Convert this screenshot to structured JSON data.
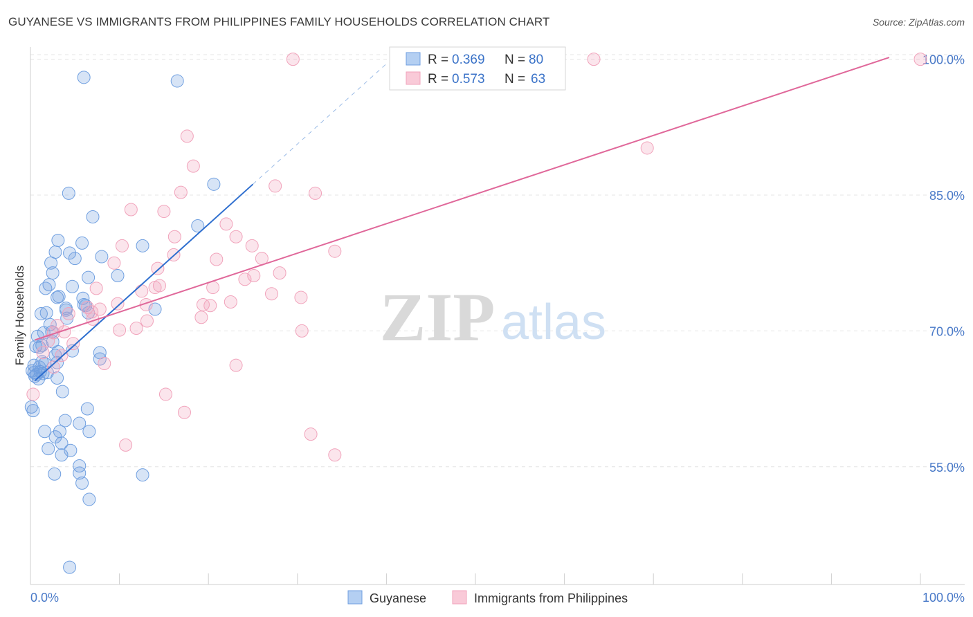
{
  "title": "GUYANESE VS IMMIGRANTS FROM PHILIPPINES FAMILY HOUSEHOLDS CORRELATION CHART",
  "source": "Source: ZipAtlas.com",
  "watermark": {
    "zip": "ZIP",
    "atlas": "atlas"
  },
  "chart_data": {
    "type": "scatter",
    "title": "GUYANESE VS IMMIGRANTS FROM PHILIPPINES FAMILY HOUSEHOLDS CORRELATION CHART",
    "xlabel": "",
    "ylabel": "Family Households",
    "xlim": [
      0,
      100
    ],
    "ylim": [
      42,
      101.5
    ],
    "x_tick_labels": [
      "0.0%",
      "100.0%"
    ],
    "y_ticks": [
      {
        "value": 55,
        "label": "55.0%"
      },
      {
        "value": 70,
        "label": "70.0%"
      },
      {
        "value": 85,
        "label": "85.0%"
      },
      {
        "value": 100,
        "label": "100.0%"
      }
    ],
    "grid": true,
    "legend_position": "bottom",
    "series": [
      {
        "name": "Guyanese",
        "color": "#6f9fe0",
        "line_color": "#2f6fcf",
        "r": "0.369",
        "n": "80",
        "trend": {
          "x0": 0.5,
          "y0": 64.5,
          "x1": 25,
          "y1": 86.2,
          "dash_x1": 40,
          "dash_y1": 99.5
        },
        "points": [
          [
            6.0,
            98.0
          ],
          [
            16.5,
            97.6
          ],
          [
            4.3,
            85.2
          ],
          [
            20.6,
            86.2
          ],
          [
            7.0,
            82.6
          ],
          [
            18.8,
            81.6
          ],
          [
            3.1,
            80.0
          ],
          [
            5.8,
            79.7
          ],
          [
            12.6,
            79.4
          ],
          [
            4.4,
            78.6
          ],
          [
            2.8,
            78.7
          ],
          [
            8.0,
            78.2
          ],
          [
            5.0,
            78.0
          ],
          [
            2.3,
            77.5
          ],
          [
            2.5,
            76.4
          ],
          [
            6.5,
            75.9
          ],
          [
            9.8,
            76.1
          ],
          [
            2.1,
            75.1
          ],
          [
            1.7,
            74.7
          ],
          [
            4.7,
            74.9
          ],
          [
            3.2,
            73.8
          ],
          [
            5.9,
            73.6
          ],
          [
            6.0,
            72.9
          ],
          [
            3.0,
            73.7
          ],
          [
            6.2,
            72.8
          ],
          [
            4.0,
            72.3
          ],
          [
            14.0,
            72.4
          ],
          [
            1.2,
            71.9
          ],
          [
            1.8,
            72.0
          ],
          [
            4.1,
            71.4
          ],
          [
            6.5,
            72.0
          ],
          [
            2.2,
            70.7
          ],
          [
            0.8,
            69.4
          ],
          [
            1.5,
            69.8
          ],
          [
            0.6,
            68.3
          ],
          [
            1.3,
            68.4
          ],
          [
            2.5,
            68.8
          ],
          [
            4.7,
            67.8
          ],
          [
            3.1,
            67.7
          ],
          [
            2.8,
            67.3
          ],
          [
            1.3,
            66.6
          ],
          [
            7.8,
            66.9
          ],
          [
            7.8,
            67.6
          ],
          [
            0.4,
            66.2
          ],
          [
            1.0,
            66.0
          ],
          [
            3.0,
            66.5
          ],
          [
            0.4,
            65.4
          ],
          [
            0.7,
            65.2
          ],
          [
            1.1,
            65.5
          ],
          [
            1.4,
            65.3
          ],
          [
            1.9,
            65.4
          ],
          [
            0.9,
            64.7
          ],
          [
            3.0,
            64.8
          ],
          [
            3.6,
            63.3
          ],
          [
            0.1,
            61.6
          ],
          [
            6.4,
            61.4
          ],
          [
            0.3,
            61.2
          ],
          [
            3.9,
            60.1
          ],
          [
            5.5,
            59.8
          ],
          [
            1.6,
            58.9
          ],
          [
            3.3,
            58.9
          ],
          [
            6.6,
            58.9
          ],
          [
            2.8,
            58.3
          ],
          [
            3.5,
            57.6
          ],
          [
            2.0,
            57.0
          ],
          [
            4.5,
            56.8
          ],
          [
            3.5,
            56.3
          ],
          [
            5.5,
            55.1
          ],
          [
            5.5,
            54.3
          ],
          [
            2.7,
            54.2
          ],
          [
            12.6,
            54.1
          ],
          [
            5.8,
            53.2
          ],
          [
            6.6,
            51.4
          ],
          [
            4.4,
            43.9
          ],
          [
            0.5,
            65.0
          ],
          [
            1.6,
            66.4
          ],
          [
            2.4,
            69.9
          ],
          [
            4.0,
            72.5
          ],
          [
            1.0,
            68.2
          ],
          [
            0.2,
            65.6
          ]
        ]
      },
      {
        "name": "Immigrants from Philippines",
        "color": "#f1a3bb",
        "line_color": "#e0689a",
        "r": "0.573",
        "n": "63",
        "trend": {
          "x0": 0.5,
          "y0": 69.0,
          "x1": 96.5,
          "y1": 100.2
        },
        "points": [
          [
            29.5,
            100.0
          ],
          [
            63.3,
            100.0
          ],
          [
            100.0,
            100.0
          ],
          [
            17.6,
            91.5
          ],
          [
            69.3,
            90.2
          ],
          [
            18.3,
            88.2
          ],
          [
            27.5,
            86.0
          ],
          [
            32.0,
            85.2
          ],
          [
            16.9,
            85.3
          ],
          [
            11.3,
            83.4
          ],
          [
            15.0,
            83.2
          ],
          [
            22.0,
            81.8
          ],
          [
            16.2,
            80.4
          ],
          [
            23.1,
            80.4
          ],
          [
            10.3,
            79.4
          ],
          [
            24.9,
            79.4
          ],
          [
            34.2,
            78.8
          ],
          [
            16.1,
            78.4
          ],
          [
            26.0,
            78.0
          ],
          [
            20.9,
            77.9
          ],
          [
            9.4,
            77.5
          ],
          [
            14.3,
            76.9
          ],
          [
            28.0,
            76.4
          ],
          [
            25.1,
            76.1
          ],
          [
            24.1,
            75.7
          ],
          [
            14.0,
            74.8
          ],
          [
            7.4,
            74.7
          ],
          [
            20.5,
            74.8
          ],
          [
            12.5,
            74.4
          ],
          [
            27.1,
            74.1
          ],
          [
            30.4,
            73.7
          ],
          [
            22.5,
            73.2
          ],
          [
            13.0,
            72.9
          ],
          [
            19.4,
            72.9
          ],
          [
            20.2,
            72.8
          ],
          [
            6.4,
            72.6
          ],
          [
            7.8,
            72.4
          ],
          [
            6.9,
            72.1
          ],
          [
            4.3,
            71.9
          ],
          [
            7.0,
            71.3
          ],
          [
            19.2,
            71.5
          ],
          [
            13.1,
            71.1
          ],
          [
            10.0,
            70.1
          ],
          [
            11.9,
            70.3
          ],
          [
            30.5,
            70.0
          ],
          [
            3.8,
            69.9
          ],
          [
            2.6,
            69.8
          ],
          [
            4.8,
            68.6
          ],
          [
            3.5,
            67.3
          ],
          [
            8.3,
            66.4
          ],
          [
            23.1,
            66.2
          ],
          [
            2.6,
            66.0
          ],
          [
            15.2,
            63.0
          ],
          [
            17.3,
            61.0
          ],
          [
            31.5,
            58.6
          ],
          [
            10.7,
            57.4
          ],
          [
            34.2,
            56.3
          ],
          [
            0.3,
            63.0
          ],
          [
            2.0,
            68.9
          ],
          [
            1.4,
            67.6
          ],
          [
            9.8,
            73.0
          ],
          [
            14.5,
            75.0
          ],
          [
            3.0,
            70.6
          ]
        ]
      }
    ]
  }
}
